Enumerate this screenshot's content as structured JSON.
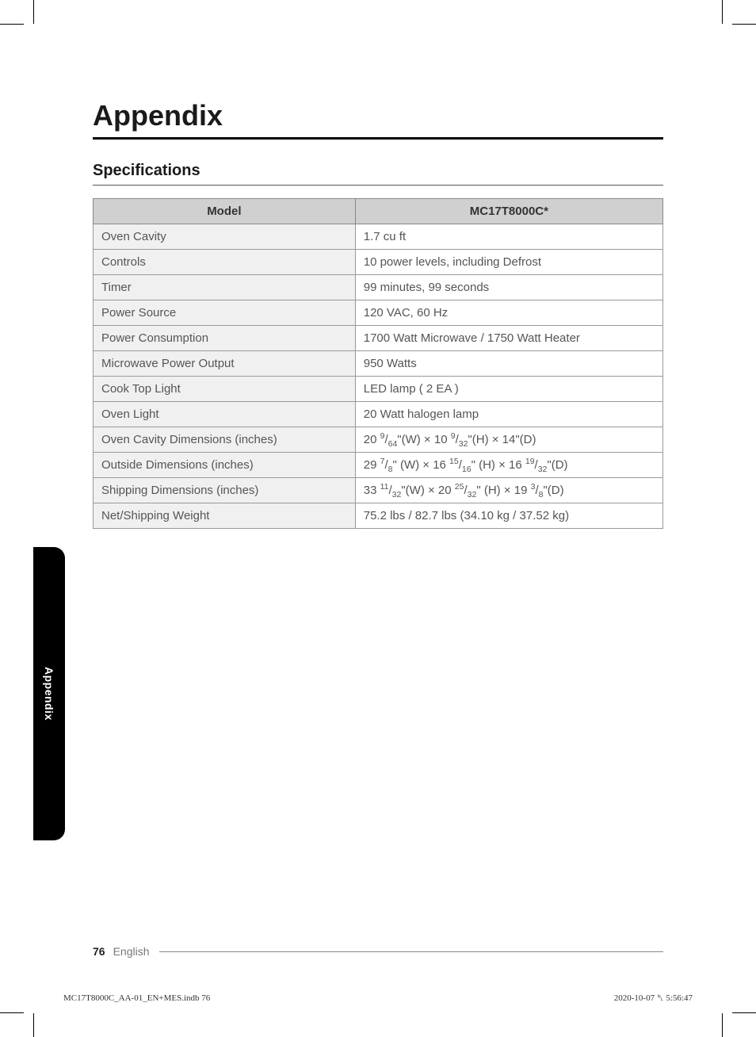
{
  "title": "Appendix",
  "section": "Specifications",
  "side_tab": "Appendix",
  "table": {
    "header_left": "Model",
    "header_right": "MC17T8000C*",
    "rows": [
      {
        "label": "Oven Cavity",
        "value": "1.7 cu ft"
      },
      {
        "label": "Controls",
        "value": "10 power levels, including Defrost"
      },
      {
        "label": "Timer",
        "value": "99 minutes, 99 seconds"
      },
      {
        "label": "Power Source",
        "value": "120 VAC, 60 Hz"
      },
      {
        "label": "Power Consumption",
        "value": "1700 Watt Microwave / 1750 Watt Heater"
      },
      {
        "label": "Microwave Power Output",
        "value": "950 Watts"
      },
      {
        "label": "Cook Top Light",
        "value": "LED lamp ( 2 EA )"
      },
      {
        "label": "Oven Light",
        "value": "20 Watt halogen lamp"
      },
      {
        "label": "Oven Cavity Dimensions (inches)",
        "value_html": "20 <span class='frac-sup'>9</span>/<span class='frac-sub'>64</span>\"(W) × 10 <span class='frac-sup'>9</span>/<span class='frac-sub'>32</span>\"(H) × 14\"(D)"
      },
      {
        "label": "Outside Dimensions (inches)",
        "value_html": "29 <span class='frac-sup'>7</span>/<span class='frac-sub'>8</span>\" (W) × 16 <span class='frac-sup'>15</span>/<span class='frac-sub'>16</span>\" (H) × 16 <span class='frac-sup'>19</span>/<span class='frac-sub'>32</span>\"(D)"
      },
      {
        "label": "Shipping Dimensions (inches)",
        "value_html": "33 <span class='frac-sup'>11</span>/<span class='frac-sub'>32</span>\"(W) × 20 <span class='frac-sup'>25</span>/<span class='frac-sub'>32</span>\" (H) × 19 <span class='frac-sup'>3</span>/<span class='frac-sub'>8</span>\"(D)"
      },
      {
        "label": "Net/Shipping Weight",
        "value": "75.2 lbs / 82.7 lbs (34.10 kg / 37.52 kg)"
      }
    ]
  },
  "footer": {
    "page_number": "76",
    "language": "English"
  },
  "print_meta": {
    "file": "MC17T8000C_AA-01_EN+MES.indb   76",
    "timestamp": "2020-10-07   ␤ 5:56:47"
  },
  "colors": {
    "header_bg": "#d0d0d0",
    "label_bg": "#f0f0f0",
    "border": "#888888",
    "text": "#555555",
    "black": "#000000"
  }
}
